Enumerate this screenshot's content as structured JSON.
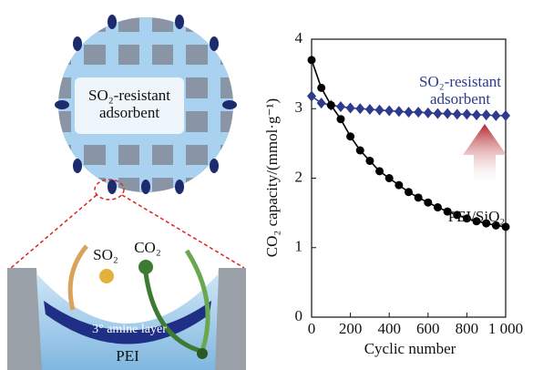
{
  "chart_data": {
    "type": "line",
    "x_label": "Cyclic number",
    "y_label": "CO₂ capacity/(mmol·g⁻¹)",
    "x": [
      0,
      50,
      100,
      150,
      200,
      250,
      300,
      350,
      400,
      450,
      500,
      550,
      600,
      650,
      700,
      750,
      800,
      850,
      900,
      950,
      1000
    ],
    "series": [
      {
        "name": "SO₂-resistant adsorbent",
        "color": "#2e3a8c",
        "marker": "diamond",
        "values": [
          3.18,
          3.08,
          3.05,
          3.03,
          3.01,
          3.0,
          2.99,
          2.98,
          2.97,
          2.96,
          2.95,
          2.95,
          2.94,
          2.93,
          2.93,
          2.92,
          2.92,
          2.91,
          2.91,
          2.9,
          2.9
        ]
      },
      {
        "name": "PEI/SiO₂",
        "color": "#000000",
        "marker": "circle",
        "values": [
          3.7,
          3.3,
          3.05,
          2.85,
          2.6,
          2.4,
          2.25,
          2.1,
          2.0,
          1.9,
          1.8,
          1.72,
          1.65,
          1.58,
          1.52,
          1.47,
          1.42,
          1.38,
          1.35,
          1.32,
          1.3
        ]
      }
    ],
    "xlim": [
      0,
      1000
    ],
    "xticks": [
      0,
      200,
      400,
      600,
      800,
      {
        "value": 1000,
        "label": "1 000"
      }
    ],
    "ylim": [
      0,
      4
    ],
    "yticks": [
      0,
      1,
      2,
      3,
      4
    ],
    "grid": false
  },
  "diagram": {
    "disk_label": "SO₂-resistant adsorbent",
    "so2": "SO₂",
    "co2": "CO₂",
    "layer": "3° amine layer",
    "support": "PEI"
  }
}
